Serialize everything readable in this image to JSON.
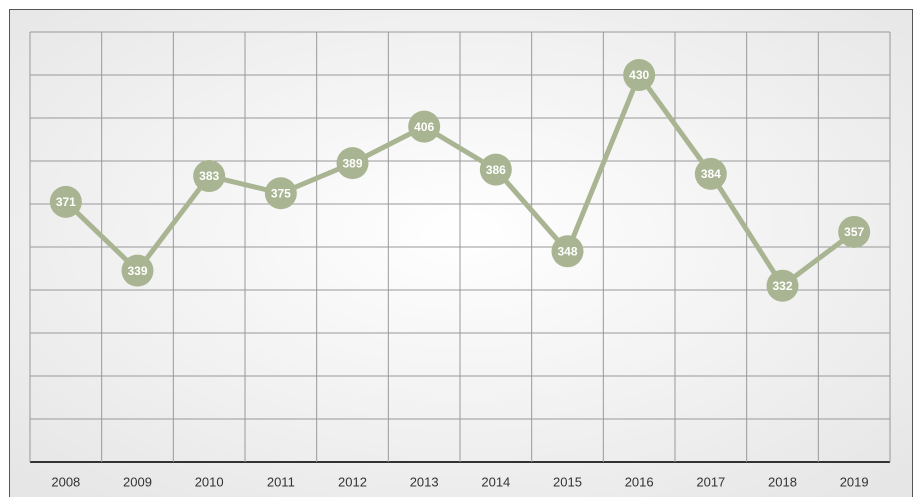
{
  "chart_data": {
    "type": "line",
    "categories": [
      "2008",
      "2009",
      "2010",
      "2011",
      "2012",
      "2013",
      "2014",
      "2015",
      "2016",
      "2017",
      "2018",
      "2019"
    ],
    "values": [
      371,
      339,
      383,
      375,
      389,
      406,
      386,
      348,
      430,
      384,
      332,
      357
    ],
    "color": "#a9b592",
    "ylim": [
      250,
      450
    ],
    "yticks": [
      250,
      270,
      290,
      310,
      330,
      350,
      370,
      390,
      410,
      430,
      450
    ],
    "grid": true
  }
}
